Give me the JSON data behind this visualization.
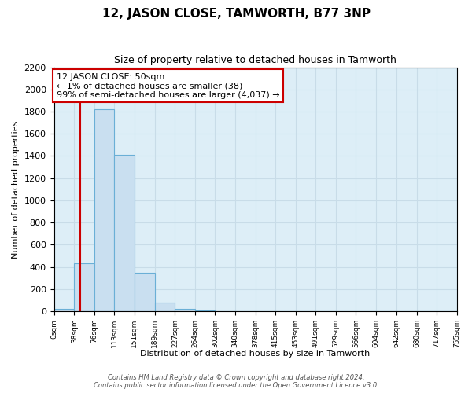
{
  "title": "12, JASON CLOSE, TAMWORTH, B77 3NP",
  "subtitle": "Size of property relative to detached houses in Tamworth",
  "xlabel": "Distribution of detached houses by size in Tamworth",
  "ylabel": "Number of detached properties",
  "bar_edges": [
    0,
    38,
    76,
    113,
    151,
    189,
    227,
    264,
    302,
    340,
    378,
    415,
    453,
    491,
    529,
    566,
    604,
    642,
    680,
    717,
    755
  ],
  "bar_heights": [
    20,
    430,
    1820,
    1410,
    350,
    80,
    25,
    5,
    0,
    0,
    0,
    0,
    0,
    0,
    0,
    0,
    0,
    0,
    0,
    0
  ],
  "bar_color": "#c9dff0",
  "bar_edgecolor": "#6aafd6",
  "vline_x": 50,
  "vline_color": "#cc0000",
  "annotation_text_line1": "12 JASON CLOSE: 50sqm",
  "annotation_text_line2": "← 1% of detached houses are smaller (38)",
  "annotation_text_line3": "99% of semi-detached houses are larger (4,037) →",
  "box_facecolor": "white",
  "box_edgecolor": "#cc0000",
  "ylim": [
    0,
    2200
  ],
  "tick_labels": [
    "0sqm",
    "38sqm",
    "76sqm",
    "113sqm",
    "151sqm",
    "189sqm",
    "227sqm",
    "264sqm",
    "302sqm",
    "340sqm",
    "378sqm",
    "415sqm",
    "453sqm",
    "491sqm",
    "529sqm",
    "566sqm",
    "604sqm",
    "642sqm",
    "680sqm",
    "717sqm",
    "755sqm"
  ],
  "footnote1": "Contains HM Land Registry data © Crown copyright and database right 2024.",
  "footnote2": "Contains public sector information licensed under the Open Government Licence v3.0.",
  "grid_color": "#c8dce8",
  "background_color": "#ddeef7"
}
